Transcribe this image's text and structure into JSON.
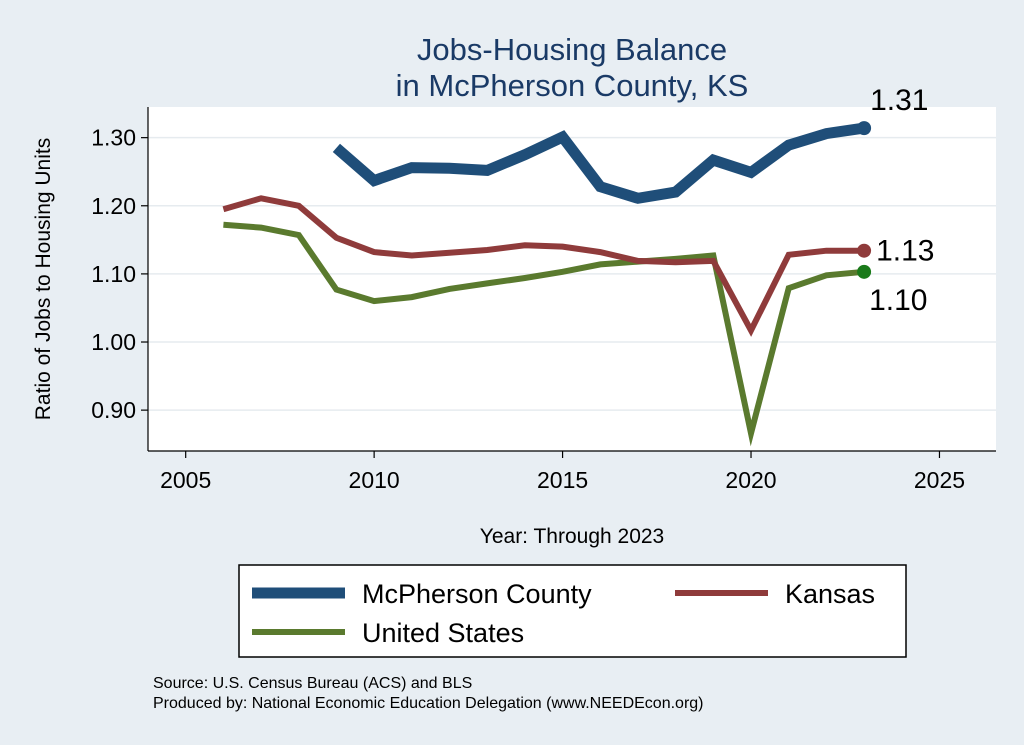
{
  "chart_data": {
    "type": "line",
    "title": [
      "Jobs-Housing Balance",
      "in McPherson County, KS"
    ],
    "xlabel": "Year: Through 2023",
    "ylabel": "Ratio of Jobs to Housing Units",
    "xlim": [
      2004,
      2026.5
    ],
    "ylim": [
      0.84,
      1.345
    ],
    "xticks": [
      2005,
      2010,
      2015,
      2020,
      2025
    ],
    "yticks": [
      0.9,
      1.0,
      1.1,
      1.2,
      1.3
    ],
    "ytick_labels": [
      "0.90",
      "1.00",
      "1.10",
      "1.20",
      "1.30"
    ],
    "grid": true,
    "series": [
      {
        "name": "McPherson County",
        "color": "#1f4e79",
        "end_label": "1.31",
        "x": [
          2009,
          2010,
          2011,
          2012,
          2013,
          2014,
          2015,
          2016,
          2017,
          2018,
          2019,
          2020,
          2021,
          2022,
          2023
        ],
        "values": [
          1.285,
          1.237,
          1.256,
          1.255,
          1.252,
          1.275,
          1.301,
          1.228,
          1.211,
          1.22,
          1.267,
          1.249,
          1.289,
          1.306,
          1.314
        ]
      },
      {
        "name": "Kansas",
        "color": "#8f3b3b",
        "end_label": "1.13",
        "x": [
          2006,
          2007,
          2008,
          2009,
          2010,
          2011,
          2012,
          2013,
          2014,
          2015,
          2016,
          2017,
          2018,
          2019,
          2020,
          2021,
          2022,
          2023
        ],
        "values": [
          1.195,
          1.211,
          1.2,
          1.153,
          1.132,
          1.127,
          1.131,
          1.135,
          1.142,
          1.14,
          1.132,
          1.119,
          1.117,
          1.119,
          1.017,
          1.128,
          1.134,
          1.134
        ]
      },
      {
        "name": "United States",
        "color": "#5a7a2e",
        "end_label": "1.10",
        "x": [
          2006,
          2007,
          2008,
          2009,
          2010,
          2011,
          2012,
          2013,
          2014,
          2015,
          2016,
          2017,
          2018,
          2019,
          2020,
          2021,
          2022,
          2023
        ],
        "values": [
          1.172,
          1.168,
          1.157,
          1.077,
          1.06,
          1.066,
          1.078,
          1.086,
          1.094,
          1.103,
          1.114,
          1.118,
          1.122,
          1.127,
          0.866,
          1.079,
          1.098,
          1.103
        ]
      }
    ],
    "end_markers": [
      "#1f4e79",
      "#8f3b3b",
      "#1a7a1a"
    ],
    "legend_position": "bottom"
  },
  "source_lines": [
    "Source: U.S. Census Bureau (ACS) and BLS",
    "Produced by: National Economic Education Delegation (www.NEEDEcon.org)"
  ]
}
